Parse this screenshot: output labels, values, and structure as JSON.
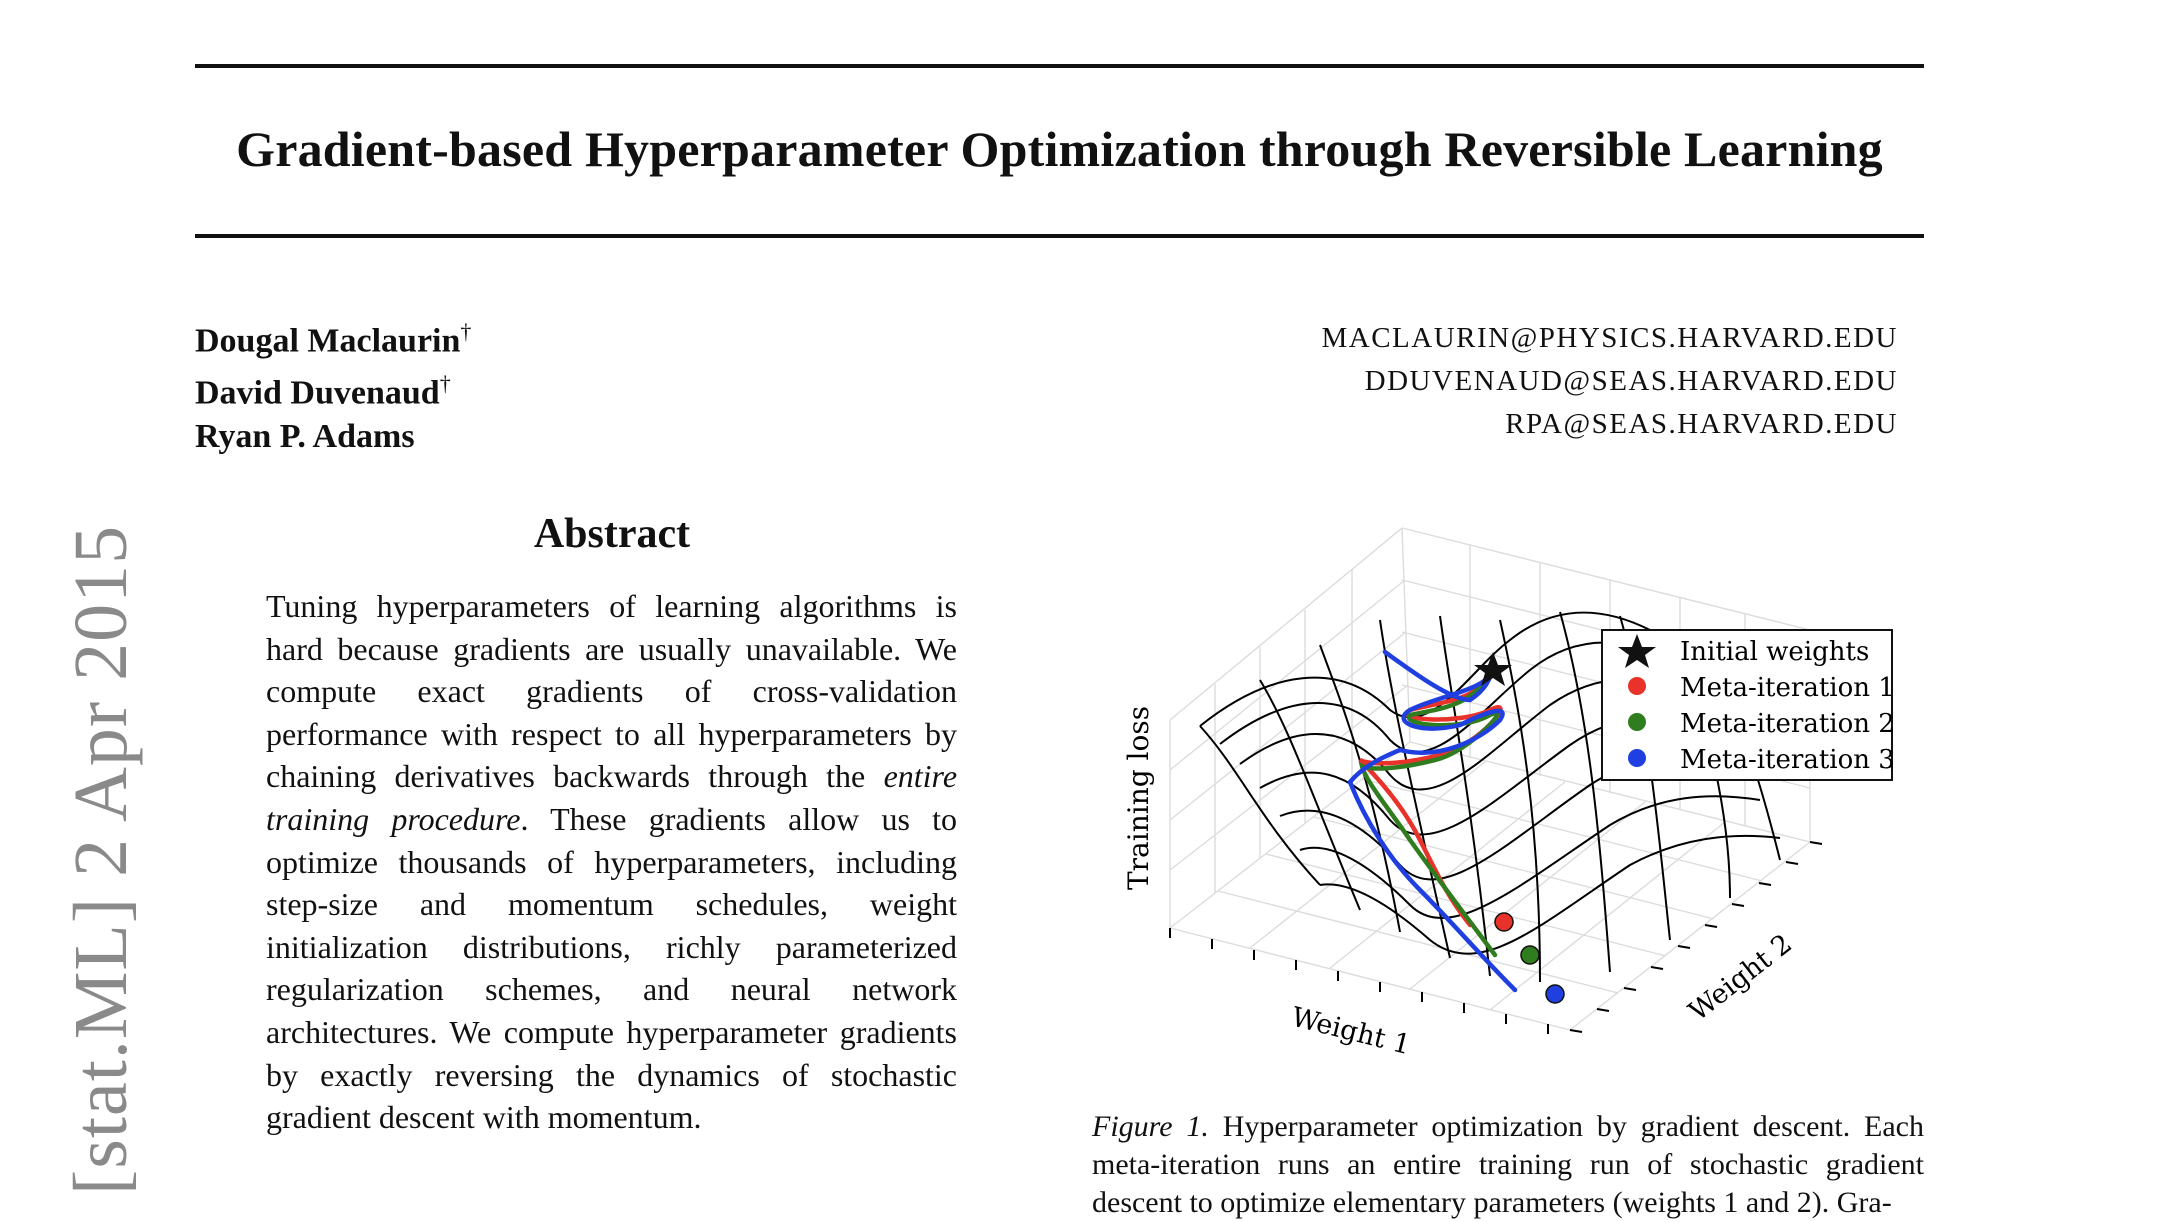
{
  "paper": {
    "title": "Gradient-based Hyperparameter Optimization through Reversible Learning",
    "arxiv_stamp": "[stat.ML]  2 Apr 2015",
    "authors": [
      {
        "name": "Dougal Maclaurin",
        "mark": "†",
        "email": "MACLAURIN@PHYSICS.HARVARD.EDU"
      },
      {
        "name": "David Duvenaud",
        "mark": "†",
        "email": "DDUVENAUD@SEAS.HARVARD.EDU"
      },
      {
        "name": "Ryan P. Adams",
        "mark": "",
        "email": "RPA@SEAS.HARVARD.EDU"
      }
    ],
    "abstract_heading": "Abstract",
    "abstract_part1": "Tuning hyperparameters of learning algorithms is hard because gradients are usually unavailable. We compute exact gradients of cross-validation performance with respect to all hyperparameters by chaining derivatives backwards through the",
    "abstract_emph": "entire training procedure",
    "abstract_part2": ". These gradients allow us to optimize thousands of hyperparameters, including step-size and momentum schedules, weight initialization distributions, richly parameterized regularization schemes, and neural network architectures. We compute hyperparameter gradients by exactly reversing the dynamics of stochastic gradient descent with momentum.",
    "figure": {
      "label": "Figure 1.",
      "caption": "Hyperparameter optimization by gradient descent. Each meta-iteration runs an entire training run of stochastic gradient descent to optimize elementary parameters (weights 1 and 2). Gra-"
    }
  },
  "chart_data": {
    "type": "surface",
    "xlabel": "Weight 1",
    "ylabel": "Weight 2",
    "zlabel": "Training loss",
    "grid": true,
    "legend_position": "top-right",
    "legend": [
      {
        "label": "Initial weights",
        "marker": "star",
        "color": "#000000"
      },
      {
        "label": "Meta-iteration 1",
        "marker": "circle",
        "color": "#e8322a"
      },
      {
        "label": "Meta-iteration 2",
        "marker": "circle",
        "color": "#2f7d1f"
      },
      {
        "label": "Meta-iteration 3",
        "marker": "circle",
        "color": "#1f3fe0"
      }
    ]
  }
}
